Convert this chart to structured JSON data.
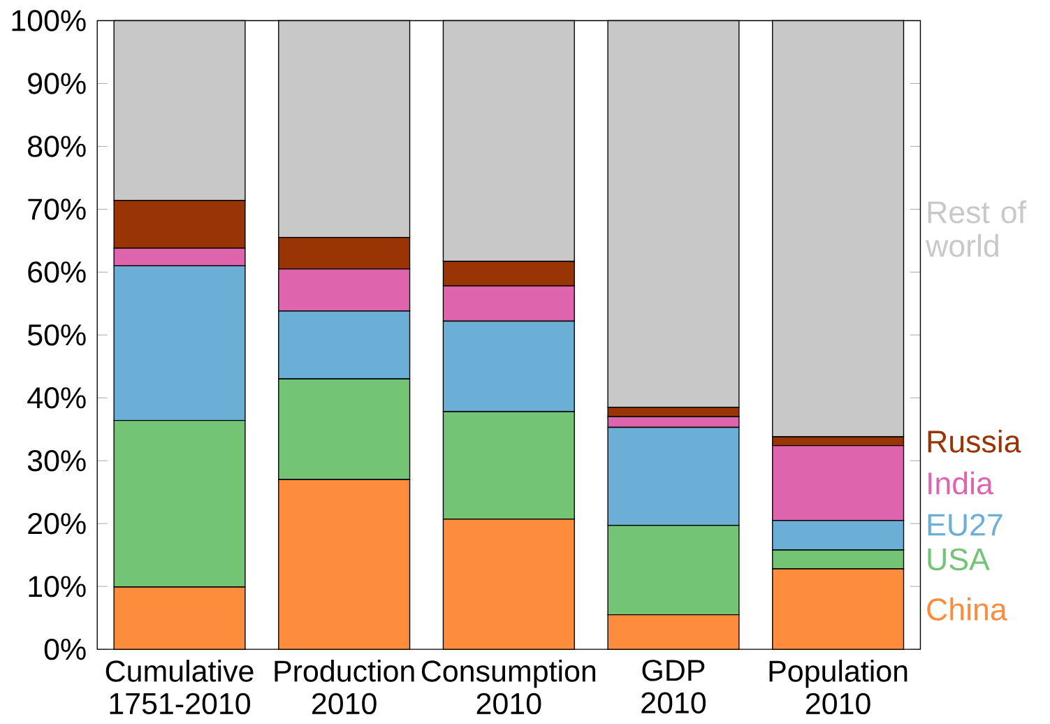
{
  "chart_data": {
    "type": "bar",
    "stacked": true,
    "categories": [
      "Cumulative 1751-2010",
      "Production 2010",
      "Consumption 2010",
      "GDP 2010",
      "Population 2010"
    ],
    "series": [
      {
        "name": "China",
        "color": "#fd8d3c",
        "values": [
          9.9,
          27.0,
          20.7,
          5.5,
          12.8
        ]
      },
      {
        "name": "USA",
        "color": "#74c476",
        "values": [
          26.5,
          16.0,
          17.1,
          14.2,
          3.0
        ]
      },
      {
        "name": "EU27",
        "color": "#6baed6",
        "values": [
          24.6,
          10.8,
          14.4,
          15.6,
          4.7
        ]
      },
      {
        "name": "India",
        "color": "#de64ae",
        "values": [
          2.8,
          6.7,
          5.6,
          1.7,
          11.9
        ]
      },
      {
        "name": "Russia",
        "color": "#993404",
        "values": [
          7.6,
          5.0,
          3.9,
          1.5,
          1.4
        ]
      },
      {
        "name": "Rest of world",
        "color": "#c8c8c8",
        "values": [
          28.6,
          34.5,
          38.3,
          61.5,
          66.2
        ]
      }
    ],
    "ylim": [
      0,
      100
    ],
    "yticks": [
      {
        "value": 0,
        "label": "0%"
      },
      {
        "value": 10,
        "label": "10%"
      },
      {
        "value": 20,
        "label": "20%"
      },
      {
        "value": 30,
        "label": "30%"
      },
      {
        "value": 40,
        "label": "40%"
      },
      {
        "value": 50,
        "label": "50%"
      },
      {
        "value": 60,
        "label": "60%"
      },
      {
        "value": 70,
        "label": "70%"
      },
      {
        "value": 80,
        "label": "80%"
      },
      {
        "value": 90,
        "label": "90%"
      },
      {
        "value": 100,
        "label": "100%"
      }
    ]
  }
}
